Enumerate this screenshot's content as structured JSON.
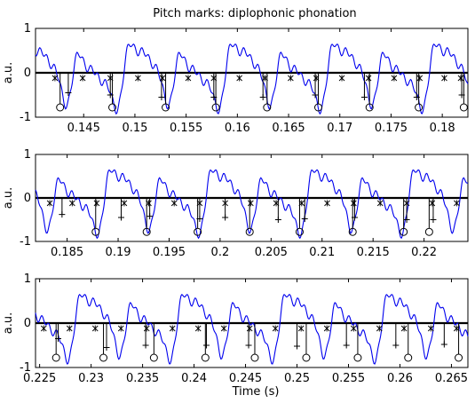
{
  "chart_data": {
    "title": "Pitch marks: diplophonic phonation",
    "xlabel": "Time (s)",
    "ylabel": "a.u.",
    "colors": {
      "signal": "#0000ee",
      "marks": "#000000",
      "axes": "#000000"
    },
    "legend": "none",
    "grid": false,
    "panels": [
      {
        "type": "line",
        "xlim": [
          0.1403,
          0.1825
        ],
        "ylim": [
          -1,
          1
        ],
        "xticks": [
          "0.145",
          "0.15",
          "0.155",
          "0.16",
          "0.165",
          "0.17",
          "0.175",
          "0.18"
        ],
        "xtick_values": [
          0.145,
          0.15,
          0.155,
          0.16,
          0.165,
          0.17,
          0.175,
          0.18
        ],
        "yticks": [
          "-1",
          "0",
          "1"
        ],
        "ytick_values": [
          -1,
          0,
          1
        ],
        "star_marks": [
          0.1422,
          0.1449,
          0.1476,
          0.1503,
          0.1527,
          0.1552,
          0.1577,
          0.1602,
          0.1627,
          0.1652,
          0.1677,
          0.1702,
          0.1728,
          0.1753,
          0.1778,
          0.1802,
          0.1818
        ],
        "plus_marks": [
          0.1435,
          0.1476,
          0.1526,
          0.1577,
          0.1625,
          0.1676,
          0.1724,
          0.1775,
          0.1819
        ],
        "circle_marks": [
          0.1427,
          0.1478,
          0.153,
          0.1579,
          0.1629,
          0.1679,
          0.1729,
          0.1777,
          0.1821
        ],
        "plus_y": [
          -0.45,
          -0.5,
          -0.55,
          -0.55,
          -0.55,
          -0.5,
          -0.55,
          -0.55,
          -0.5
        ],
        "circle_y": [
          -0.78,
          -0.78,
          -0.78,
          -0.78,
          -0.78,
          -0.78,
          -0.78,
          -0.78,
          -0.78
        ],
        "star_y": -0.12
      },
      {
        "type": "line",
        "xlim": [
          0.1819,
          0.2243
        ],
        "ylim": [
          -1,
          1
        ],
        "xticks": [
          "0.185",
          "0.19",
          "0.195",
          "0.2",
          "0.205",
          "0.21",
          "0.215",
          "0.22"
        ],
        "xtick_values": [
          0.185,
          0.19,
          0.195,
          0.2,
          0.205,
          0.21,
          0.215,
          0.22
        ],
        "yticks": [
          "-1",
          "0",
          "1"
        ],
        "ytick_values": [
          -1,
          0,
          1
        ],
        "star_marks": [
          0.1833,
          0.1855,
          0.1879,
          0.1906,
          0.193,
          0.1955,
          0.198,
          0.2005,
          0.203,
          0.2055,
          0.208,
          0.2105,
          0.2131,
          0.2157,
          0.2183,
          0.2208,
          0.2232
        ],
        "plus_marks": [
          0.1845,
          0.1903,
          0.1931,
          0.198,
          0.2005,
          0.2057,
          0.2083,
          0.2132,
          0.2183,
          0.2209
        ],
        "circle_marks": [
          0.1878,
          0.1928,
          0.1978,
          0.2029,
          0.2078,
          0.213,
          0.218,
          0.2205
        ],
        "plus_y": [
          -0.38,
          -0.45,
          -0.42,
          -0.48,
          -0.45,
          -0.5,
          -0.48,
          -0.45,
          -0.5,
          -0.5
        ],
        "circle_y": [
          -0.78,
          -0.78,
          -0.78,
          -0.78,
          -0.78,
          -0.78,
          -0.78,
          -0.78
        ],
        "star_y": -0.12
      },
      {
        "type": "line",
        "xlim": [
          0.2246,
          0.2666
        ],
        "ylim": [
          -1,
          1
        ],
        "xticks": [
          "0.225",
          "0.23",
          "0.235",
          "0.24",
          "0.245",
          "0.25",
          "0.255",
          "0.26",
          "0.265"
        ],
        "xtick_values": [
          0.225,
          0.23,
          0.235,
          0.24,
          0.245,
          0.25,
          0.255,
          0.26,
          0.265
        ],
        "yticks": [
          "-1",
          "0",
          "1"
        ],
        "ytick_values": [
          -1,
          0,
          1
        ],
        "star_marks": [
          0.2254,
          0.2279,
          0.2304,
          0.2329,
          0.2354,
          0.2379,
          0.2404,
          0.2429,
          0.2454,
          0.2479,
          0.2504,
          0.2529,
          0.2555,
          0.258,
          0.2604,
          0.263,
          0.2655
        ],
        "plus_marks": [
          0.2268,
          0.2315,
          0.2353,
          0.2412,
          0.2453,
          0.25,
          0.2548,
          0.2596,
          0.2643
        ],
        "circle_marks": [
          0.2266,
          0.2312,
          0.2361,
          0.2411,
          0.2459,
          0.2509,
          0.2559,
          0.2608,
          0.2657
        ],
        "plus_y": [
          -0.35,
          -0.55,
          -0.5,
          -0.5,
          -0.5,
          -0.52,
          -0.5,
          -0.5,
          -0.48
        ],
        "circle_y": [
          -0.78,
          -0.78,
          -0.78,
          -0.78,
          -0.78,
          -0.78,
          -0.78,
          -0.78,
          -0.78
        ],
        "star_y": -0.12
      }
    ]
  }
}
